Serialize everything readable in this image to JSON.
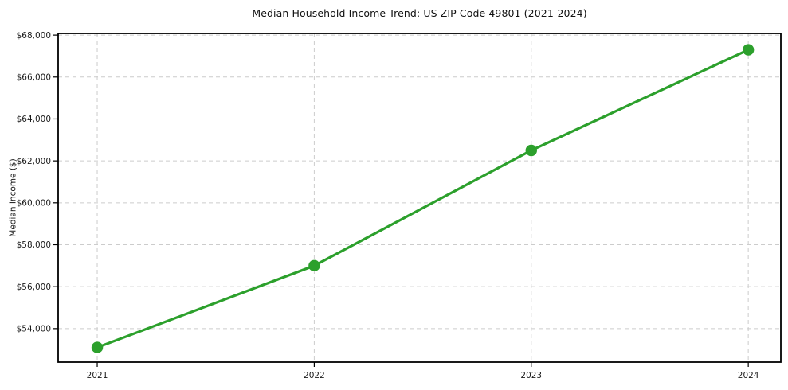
{
  "chart_data": {
    "type": "line",
    "title": "Median Household Income Trend: US ZIP Code 49801 (2021-2024)",
    "xlabel": "",
    "ylabel": "Median Income ($)",
    "x": [
      2021,
      2022,
      2023,
      2024
    ],
    "series": [
      {
        "name": "Median Household Income",
        "values": [
          53100,
          57000,
          62500,
          67300
        ]
      }
    ],
    "xticks": [
      {
        "v": 2021,
        "label": "2021"
      },
      {
        "v": 2022,
        "label": "2022"
      },
      {
        "v": 2023,
        "label": "2023"
      },
      {
        "v": 2024,
        "label": "2024"
      }
    ],
    "yticks": [
      {
        "v": 54000,
        "label": "$54,000"
      },
      {
        "v": 56000,
        "label": "$56,000"
      },
      {
        "v": 58000,
        "label": "$58,000"
      },
      {
        "v": 60000,
        "label": "$60,000"
      },
      {
        "v": 62000,
        "label": "$62,000"
      },
      {
        "v": 64000,
        "label": "$64,000"
      },
      {
        "v": 66000,
        "label": "$66,000"
      },
      {
        "v": 68000,
        "label": "$68,000"
      }
    ],
    "xlim": [
      2020.82,
      2024.15
    ],
    "ylim": [
      52400,
      68080
    ],
    "grid": true,
    "grid_style": "dashed",
    "legend": "none",
    "colors": {
      "line": "#2ca02c",
      "marker": "#2ca02c",
      "grid": "#cccccc",
      "frame": "#000000",
      "background": "#ffffff",
      "text": "#1a1a1a"
    },
    "marker": "circle"
  }
}
